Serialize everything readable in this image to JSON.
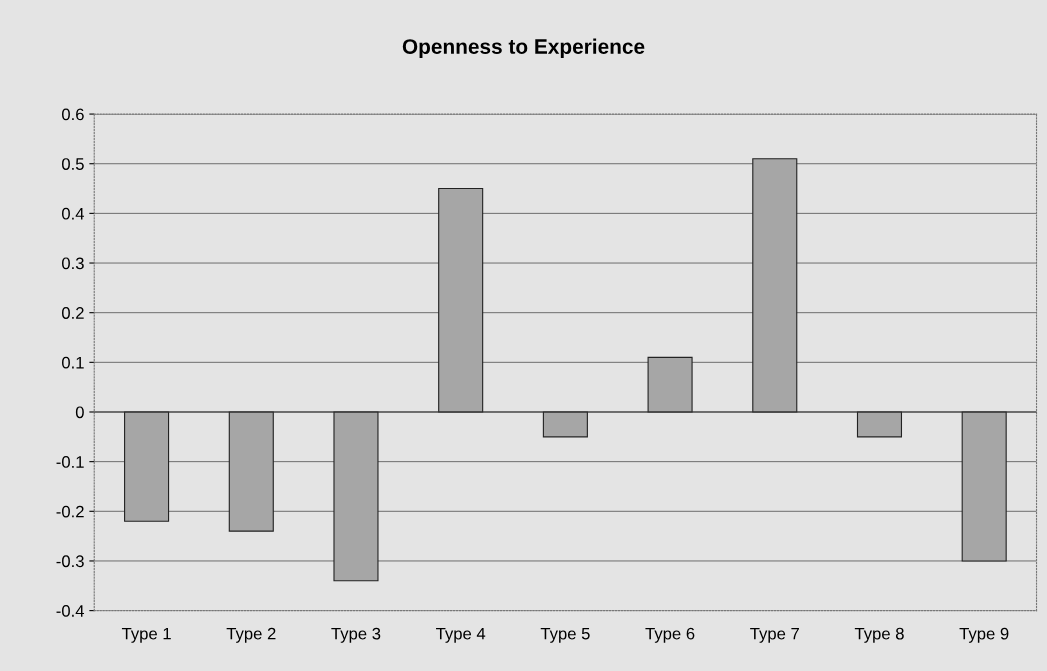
{
  "chart_data": {
    "type": "bar",
    "title": "Openness to Experience",
    "categories": [
      "Type 1",
      "Type 2",
      "Type 3",
      "Type 4",
      "Type 5",
      "Type 6",
      "Type 7",
      "Type 8",
      "Type 9"
    ],
    "values": [
      -0.22,
      -0.24,
      -0.34,
      0.45,
      -0.05,
      0.11,
      0.51,
      -0.05,
      -0.3
    ],
    "color": "#a6a6a6",
    "ylim": [
      -0.4,
      0.6
    ],
    "yticks": [
      -0.4,
      -0.3,
      -0.2,
      -0.1,
      0,
      0.1,
      0.2,
      0.3,
      0.4,
      0.5,
      0.6
    ],
    "grid": "y",
    "legend": false
  }
}
